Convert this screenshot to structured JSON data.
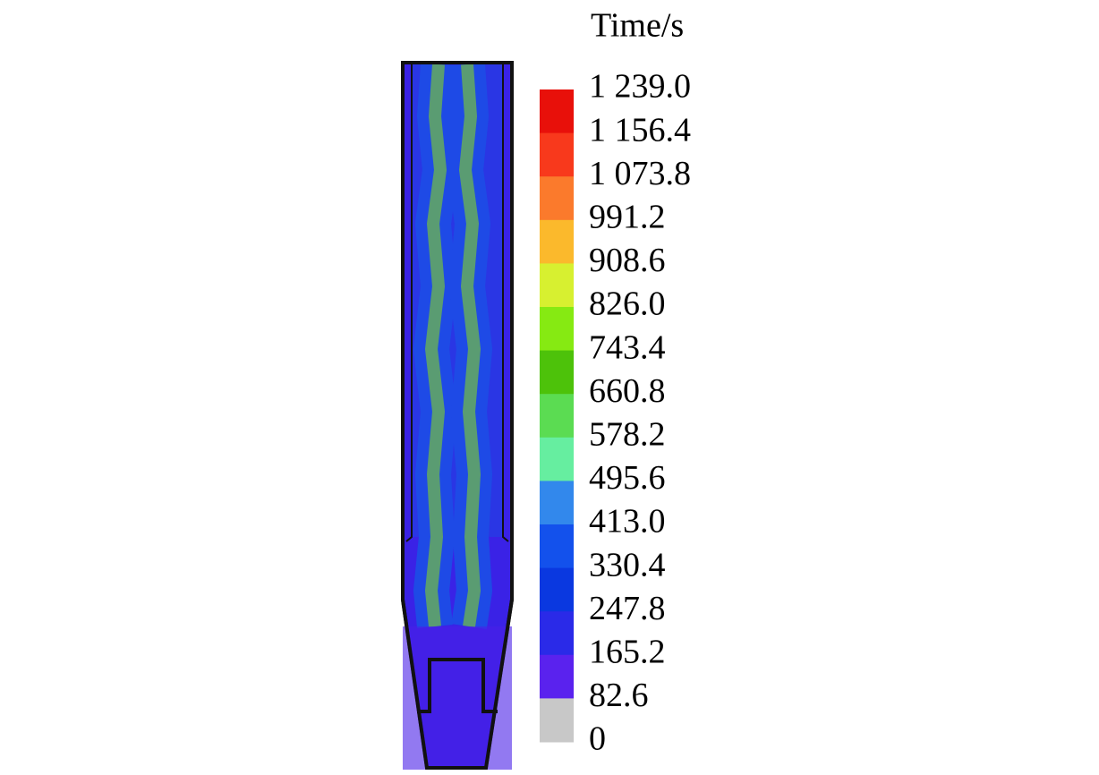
{
  "legend": {
    "title": "Time/s",
    "labels": [
      "1 239.0",
      "1 156.4",
      "1 073.8",
      "991.2",
      "908.6",
      "826.0",
      "743.4",
      "660.8",
      "578.2",
      "495.6",
      "413.0",
      "330.4",
      "247.8",
      "165.2",
      "82.6",
      "0"
    ],
    "colors": [
      "#e8100a",
      "#f8391c",
      "#fb7a2c",
      "#fbb92c",
      "#d7f030",
      "#86ea12",
      "#4dc20a",
      "#5bdc52",
      "#66eea0",
      "#3288ec",
      "#1351ec",
      "#0a38e0",
      "#2a2ae8",
      "#5a22ee",
      "#c8c8c8"
    ]
  }
}
